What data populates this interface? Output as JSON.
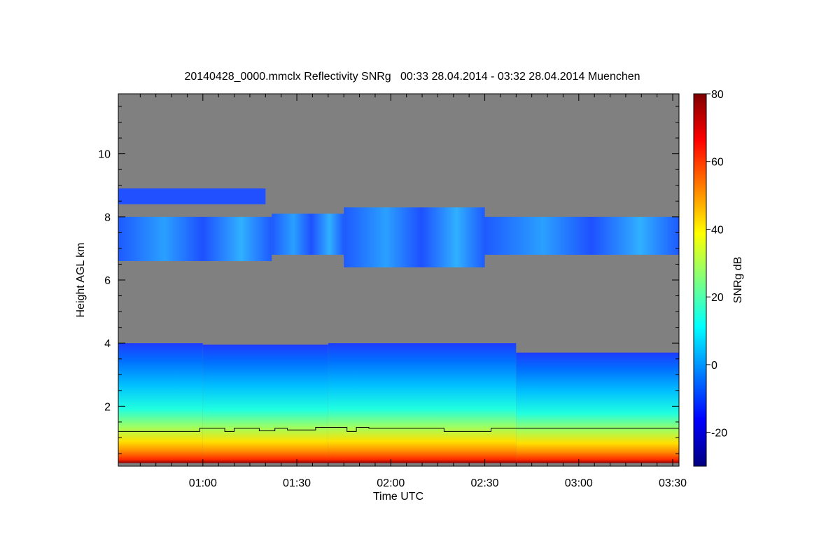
{
  "chart_data": {
    "type": "heatmap",
    "title": "20140428_0000.mmclx Reflectivity SNRg   00:33 28.04.2014 - 03:32 28.04.2014 Muenchen",
    "xlabel": "Time UTC",
    "ylabel": "Height AGL km",
    "x_ticks": [
      "01:00",
      "01:30",
      "02:00",
      "02:30",
      "03:00",
      "03:30"
    ],
    "x_tick_values_min": [
      60,
      90,
      120,
      150,
      180,
      210
    ],
    "xlim_min": [
      33,
      212
    ],
    "y_ticks": [
      "2",
      "4",
      "6",
      "8",
      "10"
    ],
    "y_tick_values": [
      2,
      4,
      6,
      8,
      10
    ],
    "ylim": [
      0.1,
      11.9
    ],
    "colorbar": {
      "label": "SNRg dB",
      "ticks": [
        "-20",
        "0",
        "20",
        "40",
        "60",
        "80"
      ],
      "tick_values": [
        -20,
        0,
        20,
        40,
        60,
        80
      ],
      "range": [
        -30,
        80
      ],
      "colormap": [
        "#00007f",
        "#0000ff",
        "#007fff",
        "#00ffff",
        "#7fff7f",
        "#ffff00",
        "#ff7f00",
        "#ff0000",
        "#7f0000"
      ]
    },
    "background_color": "#808080",
    "layers": [
      {
        "name": "boundary",
        "ranges": [
          [
            33,
            60,
            0.2,
            4.0
          ],
          [
            60,
            100,
            0.2,
            3.95
          ],
          [
            100,
            160,
            0.2,
            4.0
          ],
          [
            160,
            212,
            0.2,
            3.7
          ]
        ]
      },
      {
        "name": "cloud_mid",
        "ranges": [
          [
            33,
            82,
            6.6,
            8.0
          ],
          [
            82,
            105,
            6.8,
            8.1
          ],
          [
            105,
            150,
            6.4,
            8.3
          ],
          [
            150,
            212,
            6.8,
            8.0
          ]
        ]
      },
      {
        "name": "cloud_upper",
        "ranges": [
          [
            33,
            80,
            8.4,
            8.9
          ]
        ]
      }
    ],
    "line_series": {
      "name": "",
      "color": "#000000",
      "points": [
        [
          33,
          1.2
        ],
        [
          59,
          1.2
        ],
        [
          59,
          1.3
        ],
        [
          67,
          1.3
        ],
        [
          67,
          1.2
        ],
        [
          70,
          1.2
        ],
        [
          70,
          1.3
        ],
        [
          78,
          1.3
        ],
        [
          78,
          1.22
        ],
        [
          83,
          1.22
        ],
        [
          83,
          1.3
        ],
        [
          87,
          1.3
        ],
        [
          87,
          1.25
        ],
        [
          96,
          1.25
        ],
        [
          96,
          1.33
        ],
        [
          106,
          1.33
        ],
        [
          106,
          1.2
        ],
        [
          109,
          1.2
        ],
        [
          109,
          1.33
        ],
        [
          113,
          1.33
        ],
        [
          113,
          1.3
        ],
        [
          137,
          1.3
        ],
        [
          137,
          1.2
        ],
        [
          152,
          1.2
        ],
        [
          152,
          1.3
        ],
        [
          212,
          1.3
        ]
      ]
    }
  }
}
